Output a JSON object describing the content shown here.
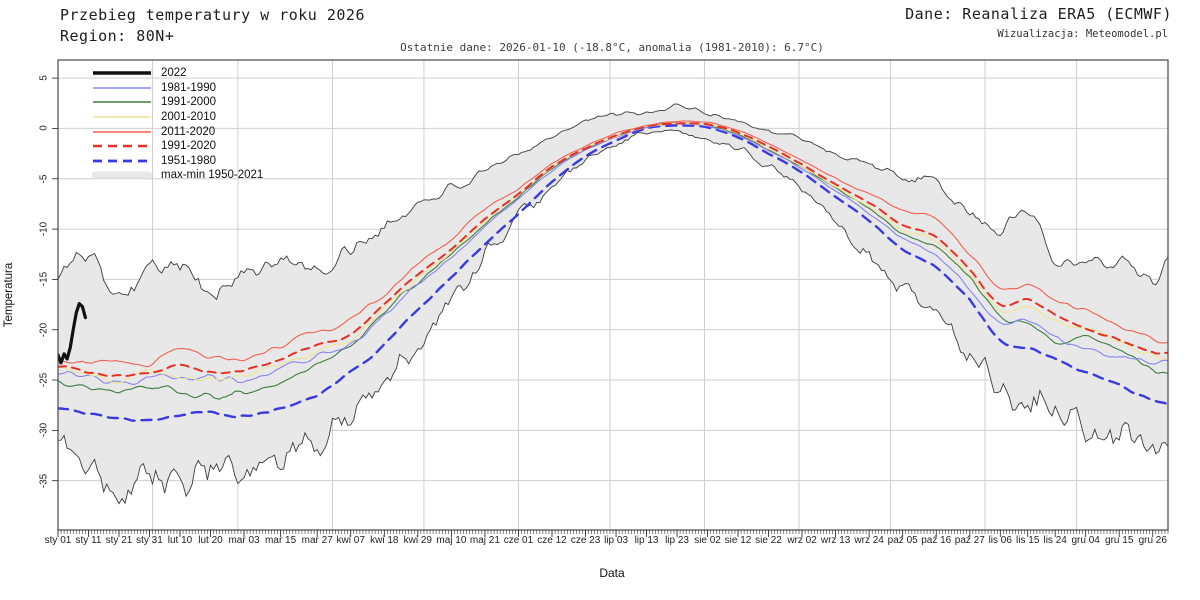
{
  "header": {
    "title": "Przebieg temperatury w roku 2026",
    "region": "Region: 80N+",
    "source": "Dane: Reanaliza ERA5 (ECMWF)",
    "credit": "Wizualizacja: Meteomodel.pl",
    "subtitle": "Ostatnie dane: 2026-01-10 (-18.8°C, anomalia (1981-2010): 6.7°C)"
  },
  "axes": {
    "xlabel": "Data",
    "ylabel": "Temperatura"
  },
  "colors": {
    "background": "#ffffff",
    "grid": "#cfcfcf",
    "frame": "#4a4a4a",
    "band_fill": "#e8e8e8",
    "band_stroke": "#3c3c3c",
    "black_2022": "#111111",
    "blue_1981_1990": "#8585f0",
    "green_1991_2000": "#3f7d3f",
    "yellow_2001_2010": "#f0e492",
    "red_2011_2020": "#ef6152",
    "red_dashed_1991_2020": "#e33225",
    "blue_dashed_1951_1980": "#3a3ae0"
  },
  "legend": {
    "items": [
      {
        "label": "2022",
        "key": "2022"
      },
      {
        "label": "1981-1990",
        "key": "1981-1990"
      },
      {
        "label": "1991-2000",
        "key": "1991-2000"
      },
      {
        "label": "2001-2010",
        "key": "2001-2010"
      },
      {
        "label": "2011-2020",
        "key": "2011-2020"
      },
      {
        "label": "1991-2020",
        "key": "1991-2020"
      },
      {
        "label": "1951-1980",
        "key": "1951-1980"
      },
      {
        "label": "max-min 1950-2021",
        "key": "band"
      }
    ]
  },
  "chart_data": {
    "type": "line",
    "title": "Przebieg temperatury w roku 2026 — Region 80N+",
    "xlabel": "Data",
    "ylabel": "Temperatura",
    "x_unit": "day_of_year",
    "ylim": [
      -39.9,
      6.8
    ],
    "grid": true,
    "legend_position": "top-left-inside",
    "y_ticks": [
      5,
      0,
      -5,
      -10,
      -15,
      -20,
      -25,
      -30,
      -35
    ],
    "x_ticks": [
      {
        "label": "sty 01",
        "day": 1
      },
      {
        "label": "sty 11",
        "day": 11
      },
      {
        "label": "sty 21",
        "day": 21
      },
      {
        "label": "sty 31",
        "day": 31
      },
      {
        "label": "lut 10",
        "day": 41
      },
      {
        "label": "lut 20",
        "day": 51
      },
      {
        "label": "mar 03",
        "day": 62
      },
      {
        "label": "mar 15",
        "day": 74
      },
      {
        "label": "mar 27",
        "day": 86
      },
      {
        "label": "kwi 07",
        "day": 97
      },
      {
        "label": "kwi 18",
        "day": 108
      },
      {
        "label": "kwi 29",
        "day": 119
      },
      {
        "label": "maj 10",
        "day": 130
      },
      {
        "label": "maj 21",
        "day": 141
      },
      {
        "label": "cze 01",
        "day": 152
      },
      {
        "label": "cze 12",
        "day": 163
      },
      {
        "label": "cze 23",
        "day": 174
      },
      {
        "label": "lip 03",
        "day": 184
      },
      {
        "label": "lip 13",
        "day": 194
      },
      {
        "label": "lip 23",
        "day": 204
      },
      {
        "label": "sie 02",
        "day": 214
      },
      {
        "label": "sie 12",
        "day": 224
      },
      {
        "label": "sie 22",
        "day": 234
      },
      {
        "label": "wrz 02",
        "day": 245
      },
      {
        "label": "wrz 13",
        "day": 256
      },
      {
        "label": "wrz 24",
        "day": 267
      },
      {
        "label": "paź 05",
        "day": 278
      },
      {
        "label": "paź 16",
        "day": 289
      },
      {
        "label": "paź 27",
        "day": 300
      },
      {
        "label": "lis 06",
        "day": 310
      },
      {
        "label": "lis 15",
        "day": 319
      },
      {
        "label": "lis 24",
        "day": 328
      },
      {
        "label": "gru 04",
        "day": 338
      },
      {
        "label": "gru 15",
        "day": 349
      },
      {
        "label": "gru 26",
        "day": 360
      }
    ],
    "month_start_days": [
      32,
      60,
      91,
      121,
      152,
      182,
      213,
      244,
      274,
      305,
      335,
      365
    ],
    "sample_days": [
      1,
      11,
      21,
      31,
      41,
      51,
      62,
      74,
      86,
      97,
      108,
      119,
      130,
      141,
      152,
      163,
      174,
      184,
      194,
      204,
      214,
      224,
      234,
      245,
      256,
      267,
      278,
      289,
      300,
      310,
      319,
      328,
      338,
      349,
      360,
      365
    ],
    "band": {
      "name": "max-min 1950-2021",
      "upper": [
        -14.5,
        -12.5,
        -16.0,
        -14.0,
        -13.0,
        -16.5,
        -14.5,
        -13.0,
        -14.5,
        -12.0,
        -10.0,
        -7.5,
        -6.0,
        -4.5,
        -2.5,
        -0.8,
        0.8,
        1.3,
        1.5,
        2.2,
        1.5,
        0.8,
        -0.3,
        -1.0,
        -2.5,
        -3.5,
        -5.0,
        -5.5,
        -8.5,
        -10.0,
        -8.0,
        -12.5,
        -13.5,
        -13.0,
        -14.5,
        -14.0
      ],
      "lower": [
        -30.5,
        -33.0,
        -36.5,
        -34.5,
        -35.5,
        -34.0,
        -35.0,
        -33.5,
        -31.0,
        -28.0,
        -25.0,
        -21.0,
        -17.5,
        -13.0,
        -9.0,
        -5.8,
        -3.2,
        -1.6,
        -0.4,
        -0.5,
        -1.2,
        -2.0,
        -3.8,
        -6.0,
        -9.0,
        -12.5,
        -16.0,
        -18.5,
        -22.0,
        -25.5,
        -27.0,
        -28.5,
        -29.5,
        -31.5,
        -30.5,
        -31.0
      ]
    },
    "series": [
      {
        "name": "1951-1980",
        "style": "dashed",
        "width": 2.4,
        "color_key": "blue_dashed_1951_1980",
        "values": [
          -27.7,
          -28.3,
          -28.8,
          -29.0,
          -28.5,
          -28.2,
          -28.6,
          -27.8,
          -26.5,
          -24.2,
          -21.5,
          -18.0,
          -14.8,
          -11.5,
          -8.5,
          -5.3,
          -2.8,
          -1.2,
          0.0,
          0.3,
          0.1,
          -0.9,
          -2.5,
          -4.4,
          -6.8,
          -9.2,
          -12.0,
          -13.8,
          -17.0,
          -21.0,
          -21.8,
          -23.0,
          -24.3,
          -25.5,
          -27.0,
          -27.3
        ]
      },
      {
        "name": "1991-2000",
        "style": "solid",
        "width": 1.1,
        "color_key": "green_1991_2000",
        "values": [
          -25.1,
          -25.8,
          -26.3,
          -25.8,
          -26.2,
          -26.5,
          -26.3,
          -25.2,
          -23.4,
          -21.8,
          -18.2,
          -15.2,
          -12.5,
          -9.5,
          -6.8,
          -4.0,
          -2.1,
          -0.8,
          0.2,
          0.5,
          0.3,
          -0.6,
          -2.1,
          -3.9,
          -6.0,
          -8.0,
          -10.5,
          -11.8,
          -15.0,
          -18.8,
          -19.5,
          -21.5,
          -20.8,
          -22.0,
          -24.0,
          -24.4
        ]
      },
      {
        "name": "1981-1990",
        "style": "solid",
        "width": 1.1,
        "color_key": "blue_1981_1990",
        "values": [
          -24.1,
          -24.8,
          -25.5,
          -24.6,
          -25.0,
          -24.7,
          -25.0,
          -24.0,
          -22.5,
          -21.5,
          -18.5,
          -15.5,
          -12.8,
          -9.8,
          -7.0,
          -4.2,
          -2.2,
          -0.9,
          0.1,
          0.4,
          0.2,
          -0.7,
          -2.2,
          -4.0,
          -6.2,
          -8.4,
          -11.0,
          -12.5,
          -16.0,
          -19.5,
          -19.0,
          -20.5,
          -22.0,
          -22.8,
          -23.2,
          -23.2
        ]
      },
      {
        "name": "2001-2010",
        "style": "solid",
        "width": 1.1,
        "color_key": "yellow_2001_2010",
        "values": [
          -23.9,
          -24.5,
          -25.2,
          -24.0,
          -24.8,
          -25.0,
          -24.5,
          -23.5,
          -22.0,
          -21.0,
          -17.8,
          -14.8,
          -12.2,
          -9.2,
          -6.6,
          -3.9,
          -2.0,
          -0.8,
          0.2,
          0.5,
          0.3,
          -0.5,
          -2.0,
          -3.8,
          -5.8,
          -7.8,
          -10.0,
          -11.2,
          -14.5,
          -18.0,
          -17.6,
          -19.0,
          -19.9,
          -21.2,
          -22.6,
          -22.7
        ]
      },
      {
        "name": "1991-2020",
        "style": "dashed",
        "width": 2.0,
        "color_key": "red_dashed_1991_2020",
        "values": [
          -23.5,
          -24.2,
          -24.5,
          -24.3,
          -23.5,
          -24.2,
          -24.0,
          -23.0,
          -21.5,
          -20.5,
          -17.5,
          -14.5,
          -12.0,
          -9.0,
          -6.5,
          -3.8,
          -2.0,
          -0.7,
          0.2,
          0.5,
          0.4,
          -0.4,
          -1.8,
          -3.6,
          -5.6,
          -7.4,
          -9.6,
          -10.8,
          -14.0,
          -17.5,
          -17.0,
          -18.5,
          -19.9,
          -21.0,
          -22.3,
          -22.5
        ]
      },
      {
        "name": "2011-2020",
        "style": "solid",
        "width": 1.1,
        "color_key": "red_2011_2020",
        "values": [
          -22.9,
          -23.3,
          -23.0,
          -23.5,
          -21.8,
          -22.6,
          -22.8,
          -21.5,
          -20.3,
          -18.9,
          -16.5,
          -13.5,
          -11.0,
          -8.0,
          -6.0,
          -3.5,
          -1.8,
          -0.5,
          0.3,
          0.7,
          0.6,
          -0.2,
          -1.5,
          -3.2,
          -5.0,
          -6.5,
          -8.2,
          -9.0,
          -12.5,
          -16.0,
          -15.5,
          -17.0,
          -18.0,
          -19.5,
          -21.0,
          -21.3
        ]
      },
      {
        "name": "2022",
        "style": "solid",
        "width": 3.2,
        "color_key": "black_2022",
        "days": [
          1,
          2,
          3,
          4,
          5,
          6,
          7,
          8,
          9,
          10
        ],
        "values": [
          -22.5,
          -23.3,
          -22.4,
          -22.9,
          -21.8,
          -20.0,
          -18.3,
          -17.4,
          -17.7,
          -18.8
        ]
      }
    ]
  }
}
